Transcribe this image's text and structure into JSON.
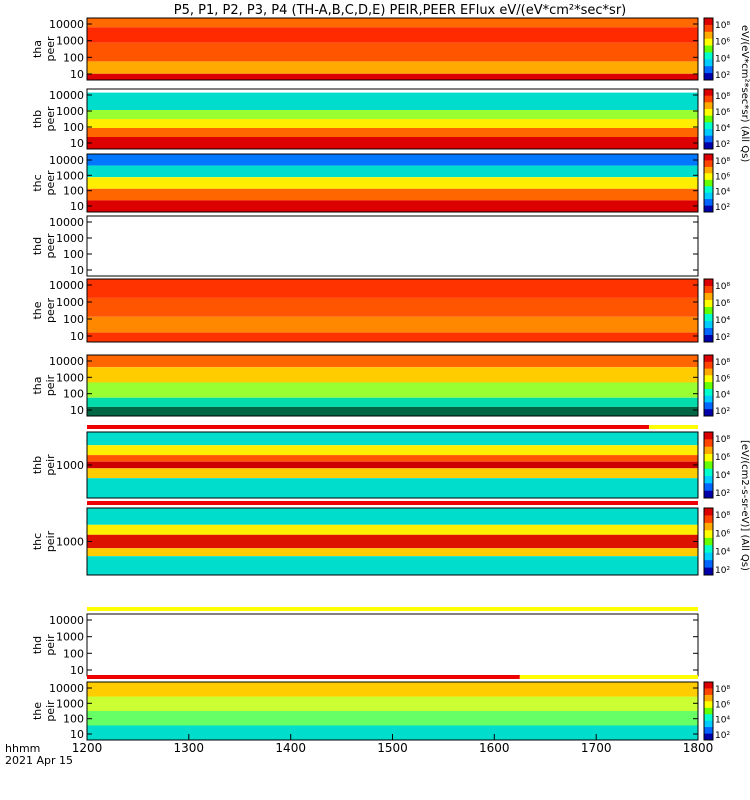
{
  "title": "P5, P1, P2, P3, P4 (TH-A,B,C,D,E) PEIR,PEER EFlux eV/(eV*cm²*sec*sr)",
  "footer": {
    "label": "hhmm",
    "date": "2021 Apr 15"
  },
  "colorbar_label_peer": "eV/(eV*cm²*sec*sr) (All Qs)",
  "colorbar_label_peir": "[eV/(cm2-s-sr-eV)] (All Qs)",
  "chart_data": {
    "type": "heatmap",
    "xlabel": "",
    "x_ticks": [
      "1200",
      "1300",
      "1400",
      "1500",
      "1600",
      "1700",
      "1800"
    ],
    "x_range": [
      1200,
      1800
    ],
    "yscale": "log",
    "colorbar_ticks": [
      "10²",
      "10⁴",
      "10⁶",
      "10⁸"
    ],
    "colormap": [
      "#0000aa",
      "#0066ff",
      "#00ccff",
      "#00ffcc",
      "#66ff00",
      "#ffff00",
      "#ffaa00",
      "#ff4400",
      "#dd0000"
    ],
    "panels": [
      {
        "id": "tha-peer",
        "ylabel": [
          "tha",
          "peer"
        ],
        "yticks": [
          "10000",
          "1000",
          "100",
          "10"
        ],
        "colorbar": true,
        "status_bar": null,
        "bands": [
          {
            "color": "#ff6a00",
            "from": 0.0,
            "to": 0.15
          },
          {
            "color": "#ff2a00",
            "from": 0.15,
            "to": 0.4
          },
          {
            "color": "#ff5500",
            "from": 0.4,
            "to": 0.7
          },
          {
            "color": "#ffaa00",
            "from": 0.7,
            "to": 0.9
          },
          {
            "color": "#dd0000",
            "from": 0.9,
            "to": 1.0
          }
        ]
      },
      {
        "id": "thb-peer",
        "ylabel": [
          "thb",
          "peer"
        ],
        "yticks": [
          "10000",
          "1000",
          "100",
          "10"
        ],
        "colorbar": true,
        "status_bar": null,
        "bands": [
          {
            "color": "#ffffff",
            "from": 0.0,
            "to": 0.06
          },
          {
            "color": "#00ddcc",
            "from": 0.06,
            "to": 0.35
          },
          {
            "color": "#99ff33",
            "from": 0.35,
            "to": 0.5
          },
          {
            "color": "#ffee00",
            "from": 0.5,
            "to": 0.65
          },
          {
            "color": "#ff6600",
            "from": 0.65,
            "to": 0.8
          },
          {
            "color": "#dd0000",
            "from": 0.8,
            "to": 1.0
          }
        ]
      },
      {
        "id": "thc-peer",
        "ylabel": [
          "thc",
          "peer"
        ],
        "yticks": [
          "10000",
          "1000",
          "100",
          "10"
        ],
        "colorbar": true,
        "status_bar": null,
        "bands": [
          {
            "color": "#0077ff",
            "from": 0.0,
            "to": 0.2
          },
          {
            "color": "#00ddcc",
            "from": 0.2,
            "to": 0.4
          },
          {
            "color": "#ffee00",
            "from": 0.4,
            "to": 0.6
          },
          {
            "color": "#ff6600",
            "from": 0.6,
            "to": 0.8
          },
          {
            "color": "#dd0000",
            "from": 0.8,
            "to": 1.0
          }
        ]
      },
      {
        "id": "thd-peer",
        "ylabel": [
          "thd",
          "peer"
        ],
        "yticks": [
          "10000",
          "1000",
          "100",
          "10"
        ],
        "colorbar": false,
        "status_bar": null,
        "bands": []
      },
      {
        "id": "the-peer",
        "ylabel": [
          "the",
          "peer"
        ],
        "yticks": [
          "10000",
          "1000",
          "100",
          "10"
        ],
        "colorbar": true,
        "status_bar": null,
        "bands": [
          {
            "color": "#ff3300",
            "from": 0.0,
            "to": 0.3
          },
          {
            "color": "#ff5500",
            "from": 0.3,
            "to": 0.6
          },
          {
            "color": "#ff8800",
            "from": 0.6,
            "to": 0.85
          },
          {
            "color": "#ff3300",
            "from": 0.85,
            "to": 1.0
          }
        ]
      },
      {
        "id": "tha-peir",
        "ylabel": [
          "tha",
          "peir"
        ],
        "yticks": [
          "10000",
          "1000",
          "100",
          "10"
        ],
        "colorbar": true,
        "status_bar": null,
        "bands": [
          {
            "color": "#ff6600",
            "from": 0.0,
            "to": 0.2
          },
          {
            "color": "#ffcc00",
            "from": 0.2,
            "to": 0.45
          },
          {
            "color": "#99ff33",
            "from": 0.45,
            "to": 0.7
          },
          {
            "color": "#00ddaa",
            "from": 0.7,
            "to": 0.85
          },
          {
            "color": "#006644",
            "from": 0.85,
            "to": 1.0
          }
        ]
      },
      {
        "id": "thb-peir",
        "ylabel": [
          "thb",
          "peir"
        ],
        "yticks": [
          "1000"
        ],
        "colorbar": true,
        "status_bar": {
          "color": "#ee0000",
          "end": 1752
        },
        "bands": [
          {
            "color": "#00ddcc",
            "from": 0.0,
            "to": 0.2
          },
          {
            "color": "#ffee00",
            "from": 0.2,
            "to": 0.35
          },
          {
            "color": "#ff5500",
            "from": 0.35,
            "to": 0.45
          },
          {
            "color": "#cc0000",
            "from": 0.45,
            "to": 0.55
          },
          {
            "color": "#ffcc00",
            "from": 0.55,
            "to": 0.7
          },
          {
            "color": "#00ddcc",
            "from": 0.7,
            "to": 1.0
          }
        ]
      },
      {
        "id": "thc-peir",
        "ylabel": [
          "thc",
          "peir"
        ],
        "yticks": [
          "1000"
        ],
        "colorbar": true,
        "status_bar": {
          "color": "#ee0000",
          "end": 1800
        },
        "bands": [
          {
            "color": "#00ddcc",
            "from": 0.0,
            "to": 0.25
          },
          {
            "color": "#ffee00",
            "from": 0.25,
            "to": 0.4
          },
          {
            "color": "#dd1100",
            "from": 0.4,
            "to": 0.6
          },
          {
            "color": "#ffcc00",
            "from": 0.6,
            "to": 0.72
          },
          {
            "color": "#00ddcc",
            "from": 0.72,
            "to": 1.0
          }
        ]
      },
      {
        "id": "thd-peir",
        "ylabel": [
          "thd",
          "peir"
        ],
        "yticks": [
          "10000",
          "1000",
          "100",
          "10"
        ],
        "colorbar": false,
        "status_bar": {
          "color": "#ffff00",
          "end": 1800
        },
        "bands": []
      },
      {
        "id": "the-peir",
        "ylabel": [
          "the",
          "peir"
        ],
        "yticks": [
          "10000",
          "1000",
          "100",
          "10"
        ],
        "colorbar": true,
        "status_bar": {
          "color": "#ee0000",
          "end": 1625
        },
        "bands": [
          {
            "color": "#ffcc00",
            "from": 0.0,
            "to": 0.25
          },
          {
            "color": "#ccff33",
            "from": 0.25,
            "to": 0.5
          },
          {
            "color": "#66ff66",
            "from": 0.5,
            "to": 0.75
          },
          {
            "color": "#00ddcc",
            "from": 0.75,
            "to": 1.0
          }
        ]
      }
    ]
  }
}
